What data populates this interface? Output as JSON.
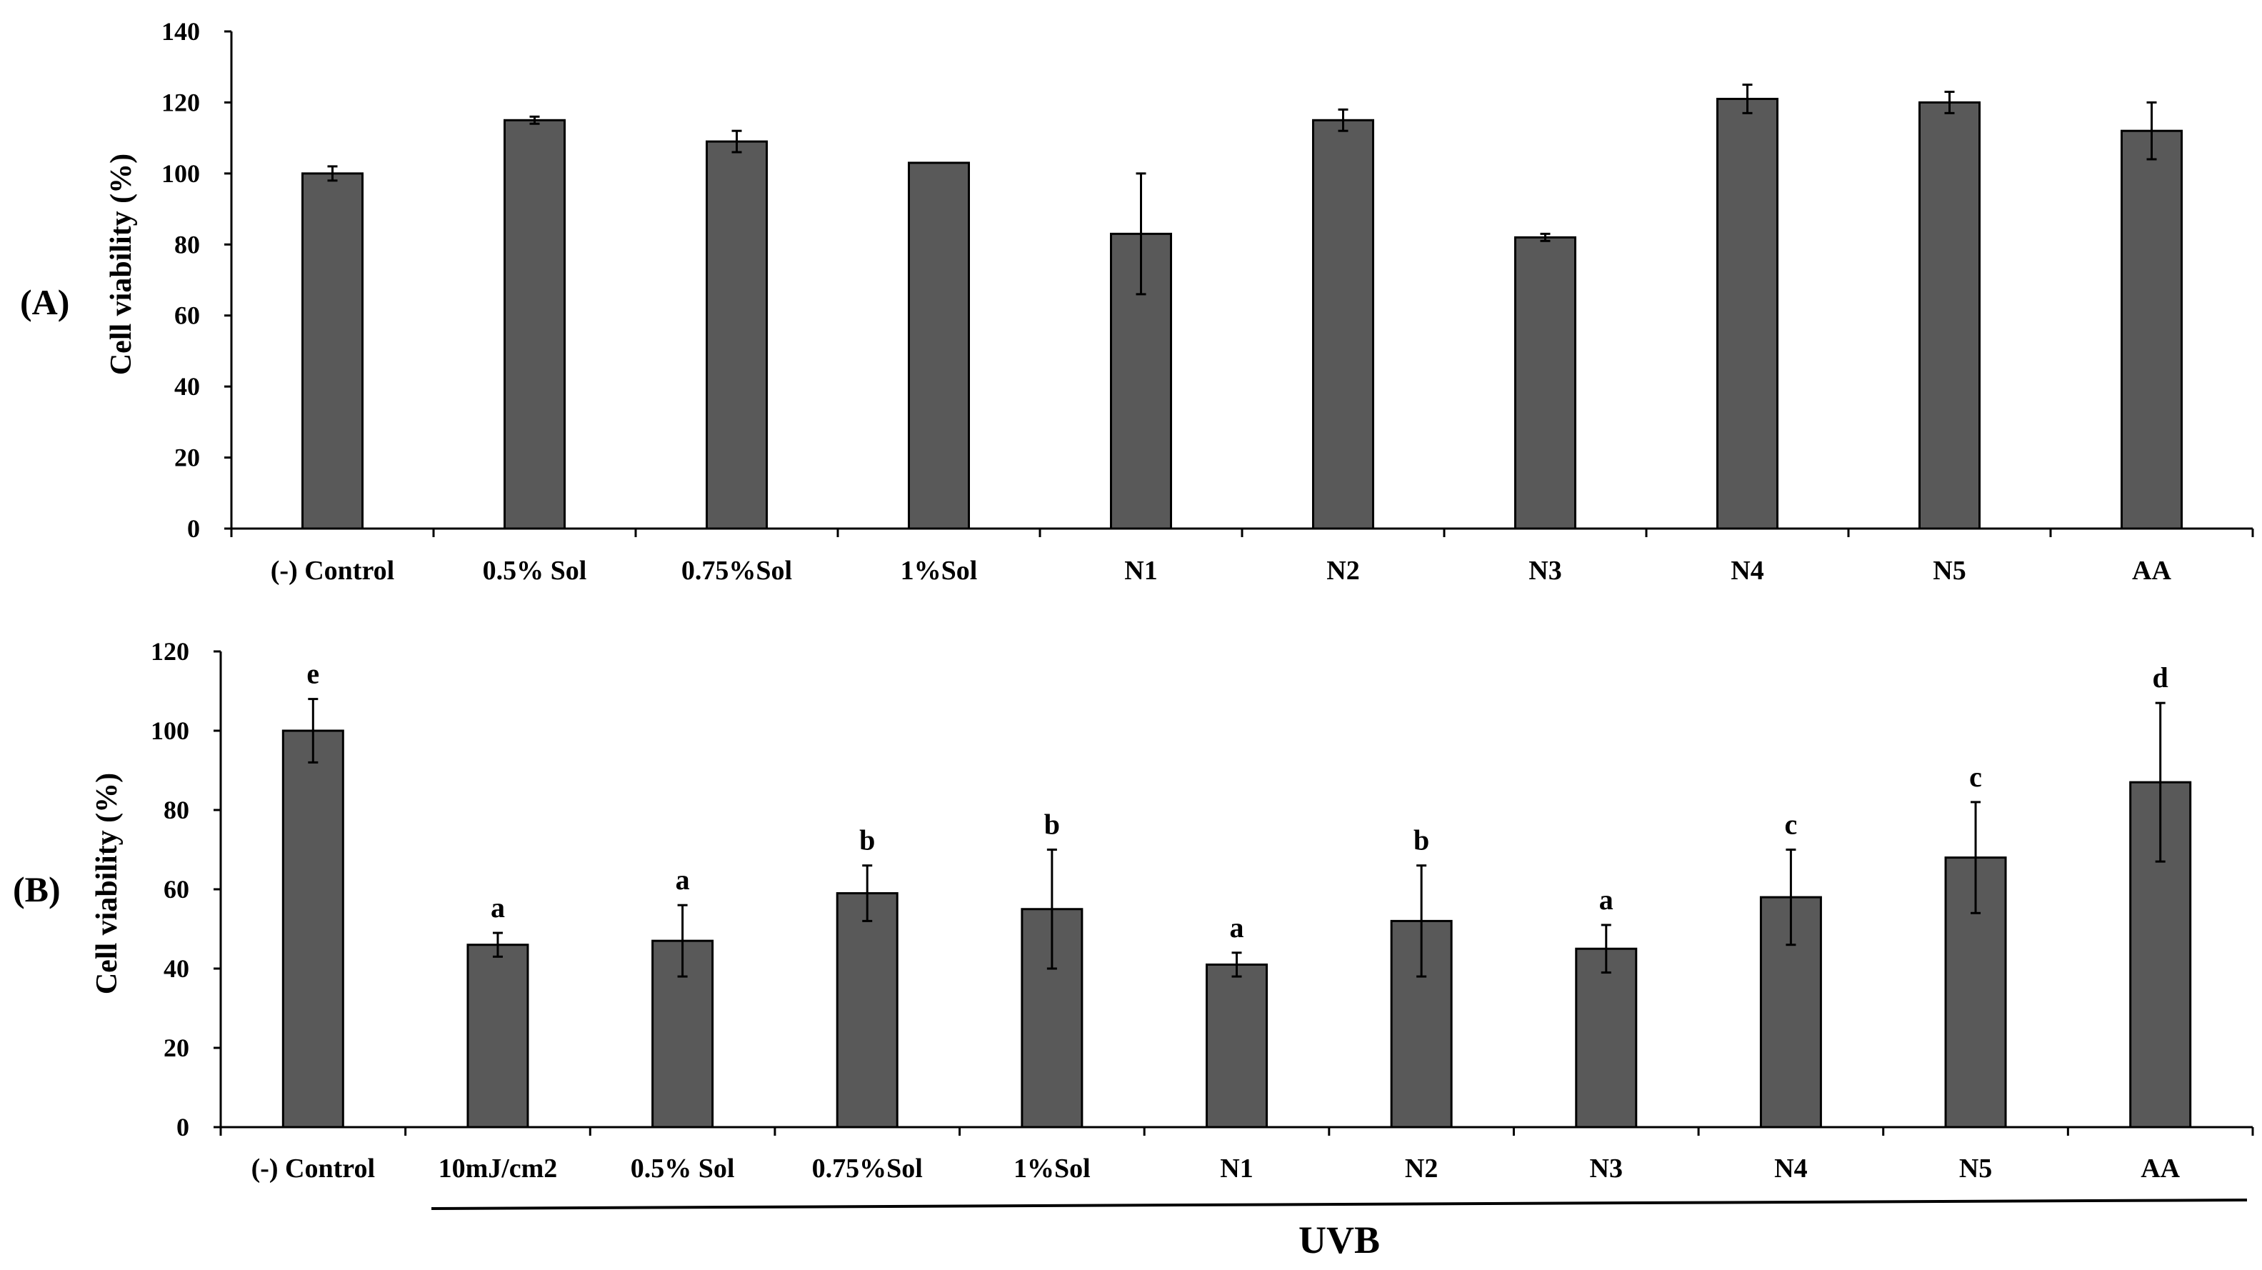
{
  "chart_data": [
    {
      "type": "bar",
      "panel_label": "(A)",
      "title": "",
      "xlabel": "",
      "ylabel": "Cell viability (%)",
      "ylim": [
        0,
        140
      ],
      "yticks": [
        0,
        20,
        40,
        60,
        80,
        100,
        120,
        140
      ],
      "grid": false,
      "categories": [
        "(-) Control",
        "0.5% Sol",
        "0.75%Sol",
        "1%Sol",
        "N1",
        "N2",
        "N3",
        "N4",
        "N5",
        "AA"
      ],
      "values": [
        100,
        115,
        109,
        103,
        83,
        115,
        82,
        121,
        120,
        112
      ],
      "errors": [
        2,
        1,
        3,
        0,
        17,
        3,
        1,
        4,
        3,
        8
      ],
      "bar_color": "#595959"
    },
    {
      "type": "bar",
      "panel_label": "(B)",
      "title": "",
      "xlabel": "",
      "ylabel": "Cell viability (%)",
      "ylim": [
        0,
        120
      ],
      "yticks": [
        0,
        20,
        40,
        60,
        80,
        100,
        120
      ],
      "grid": false,
      "categories": [
        "(-) Control",
        "10mJ/cm2",
        "0.5% Sol",
        "0.75%Sol",
        "1%Sol",
        "N1",
        "N2",
        "N3",
        "N4",
        "N5",
        "AA"
      ],
      "values": [
        100,
        46,
        47,
        59,
        55,
        41,
        52,
        45,
        58,
        68,
        87
      ],
      "errors": [
        8,
        3,
        9,
        7,
        15,
        3,
        14,
        6,
        12,
        14,
        20
      ],
      "significance": [
        "e",
        "a",
        "a",
        "b",
        "b",
        "a",
        "b",
        "a",
        "c",
        "c",
        "d"
      ],
      "bracket_label": "UVB",
      "bar_color": "#595959"
    }
  ]
}
